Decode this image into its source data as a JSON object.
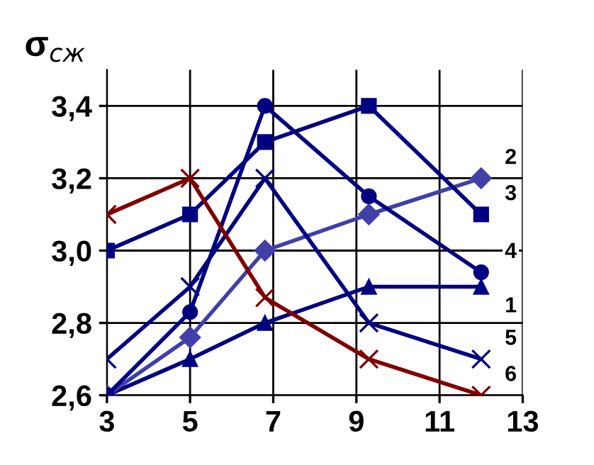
{
  "chart_data": {
    "type": "line",
    "ylabel": "σ$_{сж}$",
    "x": [
      3,
      5,
      6.8,
      9.3,
      12
    ],
    "series": [
      {
        "name": "1",
        "color": "#000080",
        "marker": "triangle",
        "values": [
          2.6,
          2.7,
          2.8,
          2.9,
          2.9
        ]
      },
      {
        "name": "2",
        "color": "#4040a8",
        "marker": "diamond",
        "values": [
          2.6,
          2.76,
          3.0,
          3.1,
          3.2
        ]
      },
      {
        "name": "3",
        "color": "#000080",
        "marker": "square",
        "values": [
          3.0,
          3.1,
          3.3,
          3.4,
          3.1
        ]
      },
      {
        "name": "4",
        "color": "#000080",
        "marker": "circle",
        "values": [
          2.6,
          2.83,
          3.4,
          3.15,
          2.94
        ]
      },
      {
        "name": "5",
        "color": "#000080",
        "marker": "cross",
        "values": [
          2.7,
          2.9,
          3.2,
          2.8,
          2.7
        ]
      },
      {
        "name": "6",
        "color": "#800000",
        "marker": "cross",
        "values": [
          3.1,
          3.2,
          2.87,
          2.7,
          2.6
        ]
      }
    ],
    "xlim": [
      3,
      13
    ],
    "xticks": [
      3,
      5,
      7,
      9,
      11,
      13
    ],
    "ylim": [
      2.6,
      3.5
    ],
    "yticks": [
      {
        "value": 2.6,
        "label": "2,6"
      },
      {
        "value": 2.8,
        "label": "2,8"
      },
      {
        "value": 3.0,
        "label": "3,0"
      },
      {
        "value": 3.2,
        "label": "3,2"
      },
      {
        "value": 3.4,
        "label": "3,4"
      }
    ],
    "grid": true,
    "legend": false,
    "line_style": "solid"
  }
}
